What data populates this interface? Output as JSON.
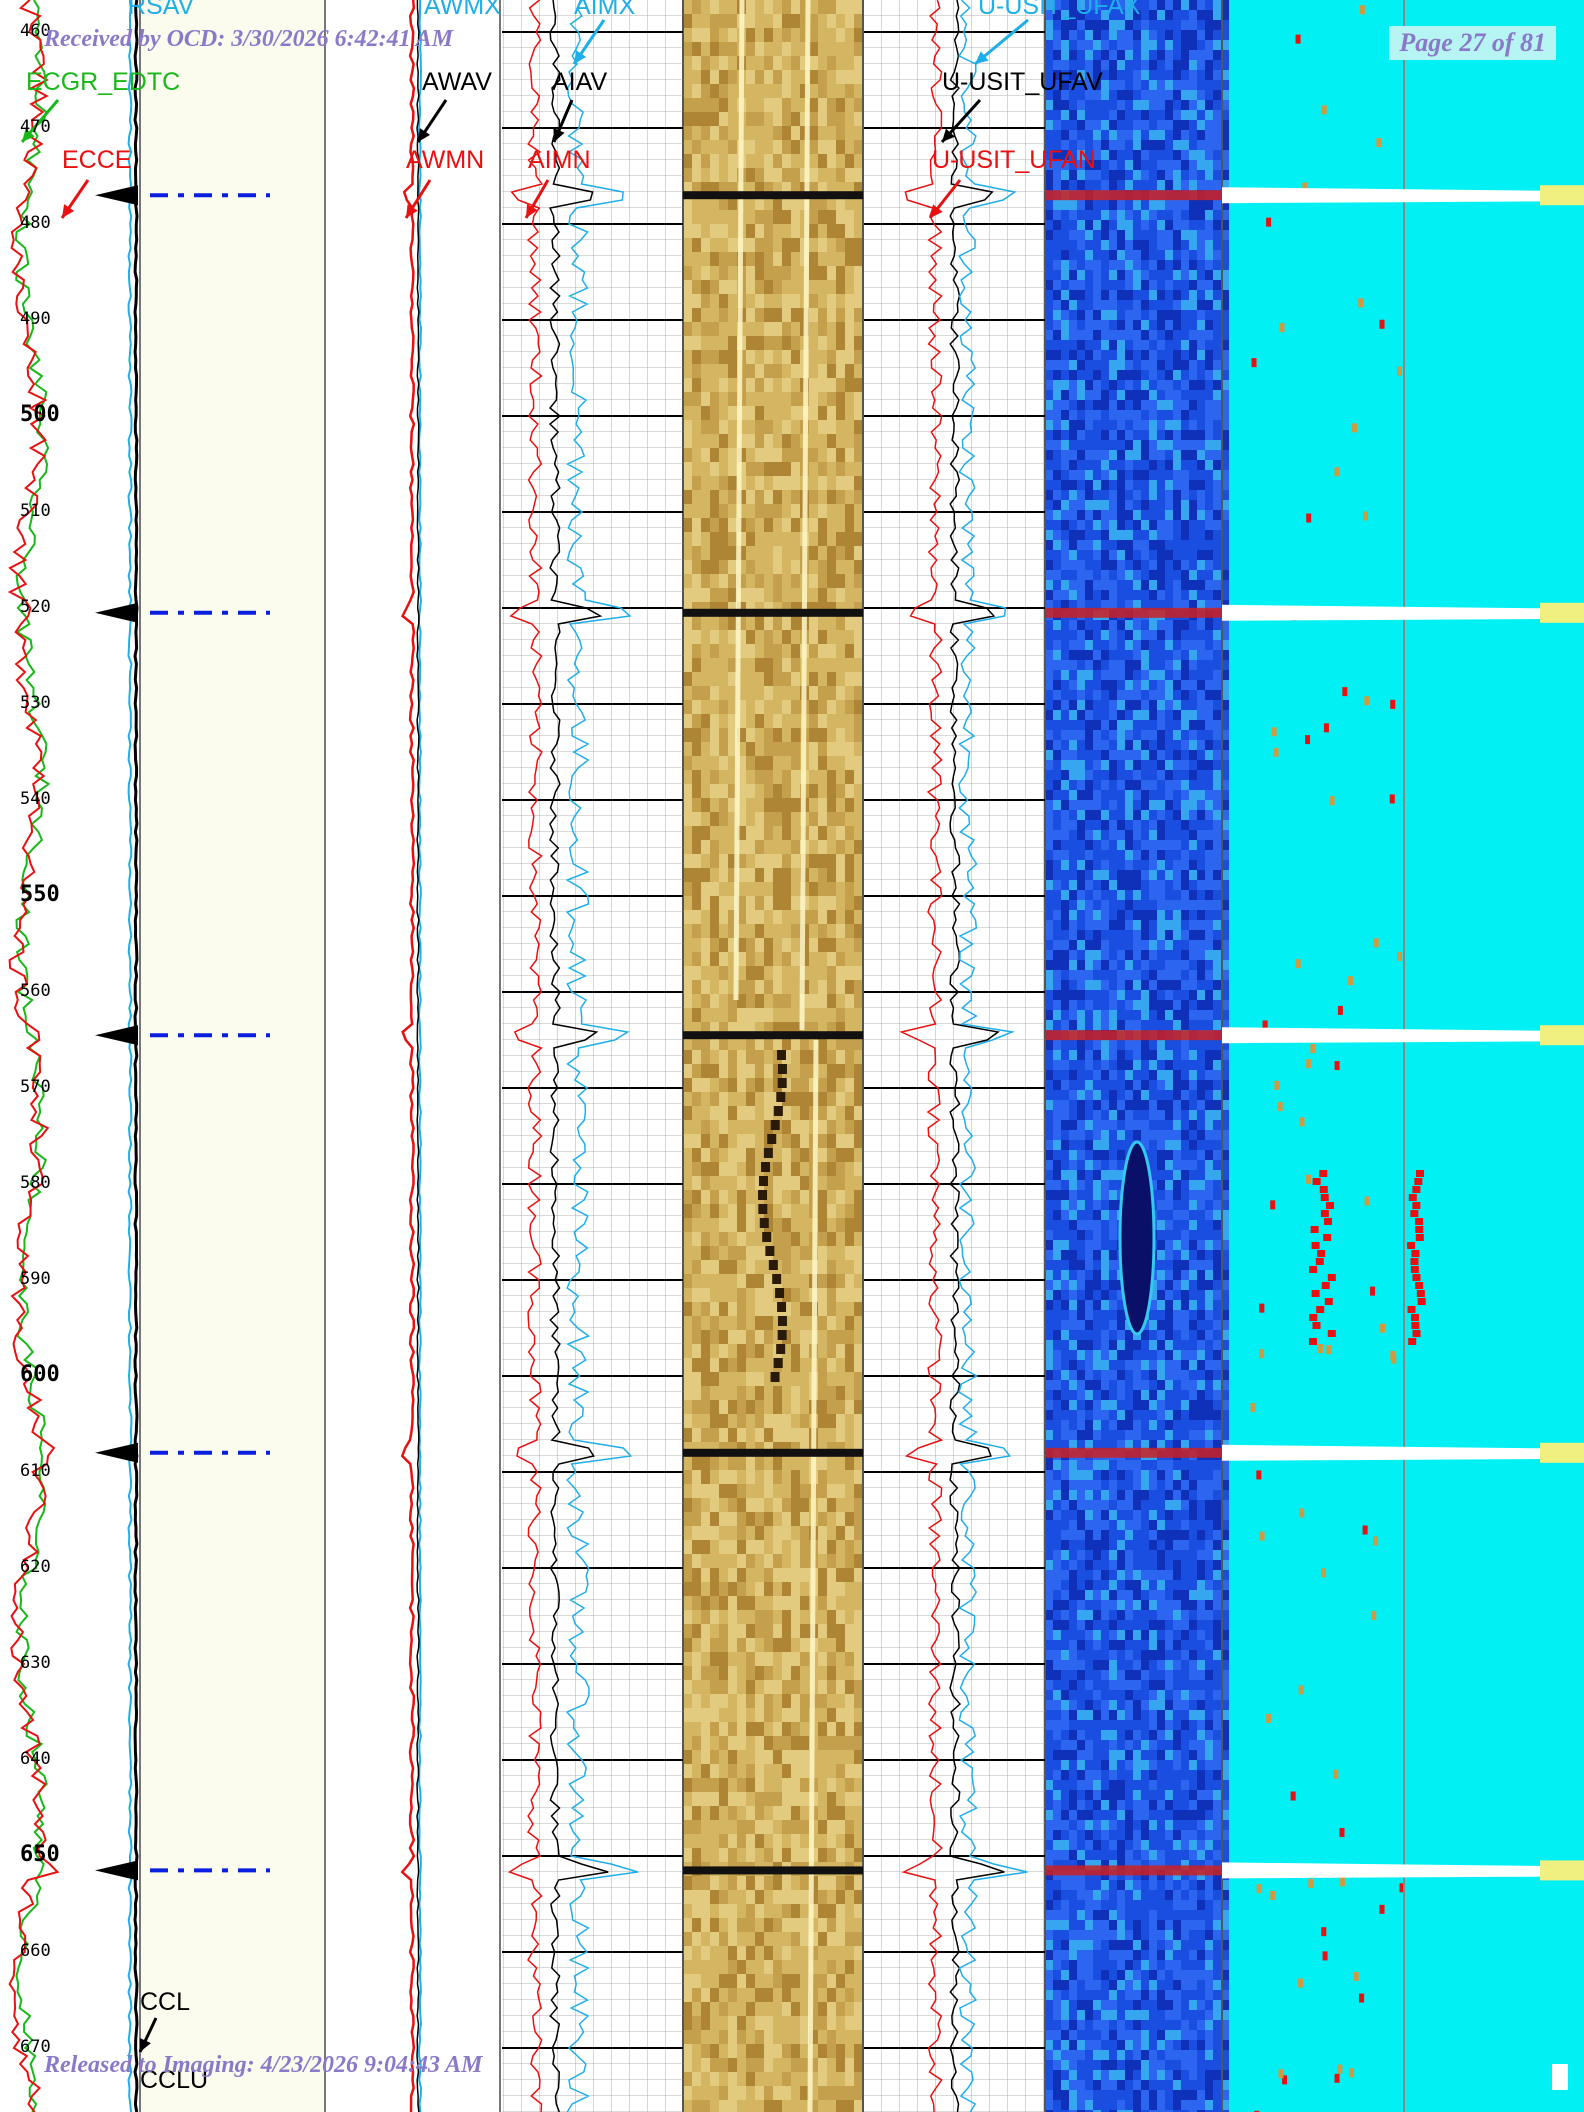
{
  "header": {
    "received": "Received by OCD: 3/30/2026 6:42:41 AM",
    "page": "Page 27 of 81"
  },
  "footer": {
    "released": "Released to Imaging: 4/23/2026 9:04:43 AM"
  },
  "curves": {
    "rsav": "RSAV",
    "ecgr_edtc": "ECGR_EDTC",
    "ecce": "ECCE",
    "awmx": "AWMX",
    "awav": "AWAV",
    "awmn": "AWMN",
    "aimx": "AIMX",
    "aiav": "AIAV",
    "aimn": "AIMN",
    "ufax": "U-USIT_UFAX",
    "ufav": "U-USIT_UFAV",
    "ufan": "U-USIT_UFAN",
    "ccl": "CCL",
    "cclu": "CCLU"
  },
  "colors": {
    "green": "#18b818",
    "red": "#e81010",
    "cyan_curve": "#1eaee8",
    "black": "#000000",
    "blue_ticks": "#0a1ee0",
    "cream": "#fbfbee",
    "amplitude_base": "#cfb15a",
    "acoustic_base": "#1848d8",
    "cyan_bg": "#00f0f4",
    "label_blue": "#1eaee8"
  },
  "depth_labels": [
    {
      "value": "460",
      "major": false
    },
    {
      "value": "470",
      "major": false
    },
    {
      "value": "480",
      "major": false
    },
    {
      "value": "490",
      "major": false
    },
    {
      "value": "500",
      "major": true
    },
    {
      "value": "510",
      "major": false
    },
    {
      "value": "520",
      "major": false
    },
    {
      "value": "530",
      "major": false
    },
    {
      "value": "540",
      "major": false
    },
    {
      "value": "550",
      "major": true
    },
    {
      "value": "560",
      "major": false
    },
    {
      "value": "570",
      "major": false
    },
    {
      "value": "580",
      "major": false
    },
    {
      "value": "590",
      "major": false
    },
    {
      "value": "600",
      "major": true
    },
    {
      "value": "610",
      "major": false
    },
    {
      "value": "620",
      "major": false
    },
    {
      "value": "630",
      "major": false
    },
    {
      "value": "640",
      "major": false
    },
    {
      "value": "650",
      "major": true
    },
    {
      "value": "660",
      "major": false
    },
    {
      "value": "670",
      "major": false
    }
  ],
  "collar_depths": [
    477,
    520.5,
    564.5,
    608,
    651.5
  ]
}
